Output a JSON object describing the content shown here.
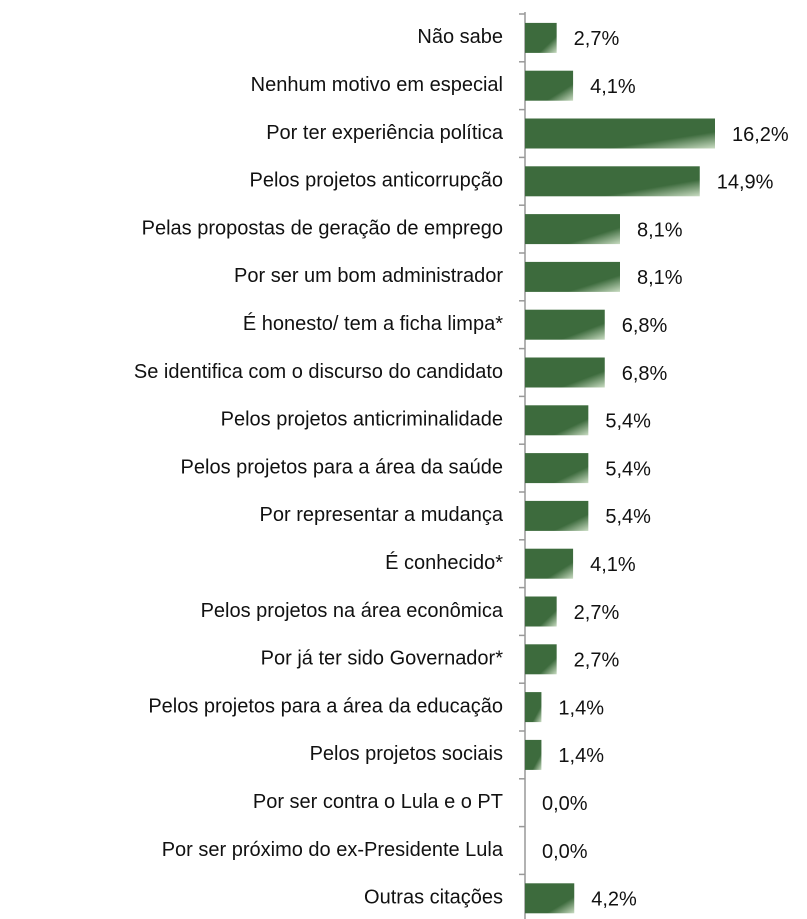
{
  "chart_data": {
    "type": "bar",
    "orientation": "horizontal",
    "color": "#3d6b3d",
    "categories": [
      "Não sabe",
      "Nenhum motivo em especial",
      "Por ter experiência política",
      "Pelos projetos anticorrupção",
      "Pelas propostas de geração de emprego",
      "Por ser um bom administrador",
      "É honesto/ tem a ficha limpa*",
      "Se identifica com o discurso do candidato",
      "Pelos projetos anticriminalidade",
      "Pelos projetos para a área da saúde",
      "Por representar a mudança",
      "É conhecido*",
      "Pelos projetos na área econômica",
      "Por já ter sido Governador*",
      "Pelos projetos para a área da educação",
      "Pelos projetos sociais",
      "Por ser contra o Lula e o PT",
      "Por ser próximo do ex-Presidente Lula",
      "Outras citações"
    ],
    "values": [
      2.7,
      4.1,
      16.2,
      14.9,
      8.1,
      8.1,
      6.8,
      6.8,
      5.4,
      5.4,
      5.4,
      4.1,
      2.7,
      2.7,
      1.4,
      1.4,
      0.0,
      0.0,
      4.2
    ],
    "value_labels": [
      "2,7%",
      "4,1%",
      "16,2%",
      "14,9%",
      "8,1%",
      "8,1%",
      "6,8%",
      "6,8%",
      "5,4%",
      "5,4%",
      "5,4%",
      "4,1%",
      "2,7%",
      "2,7%",
      "1,4%",
      "1,4%",
      "0,0%",
      "0,0%",
      "4,2%"
    ]
  }
}
